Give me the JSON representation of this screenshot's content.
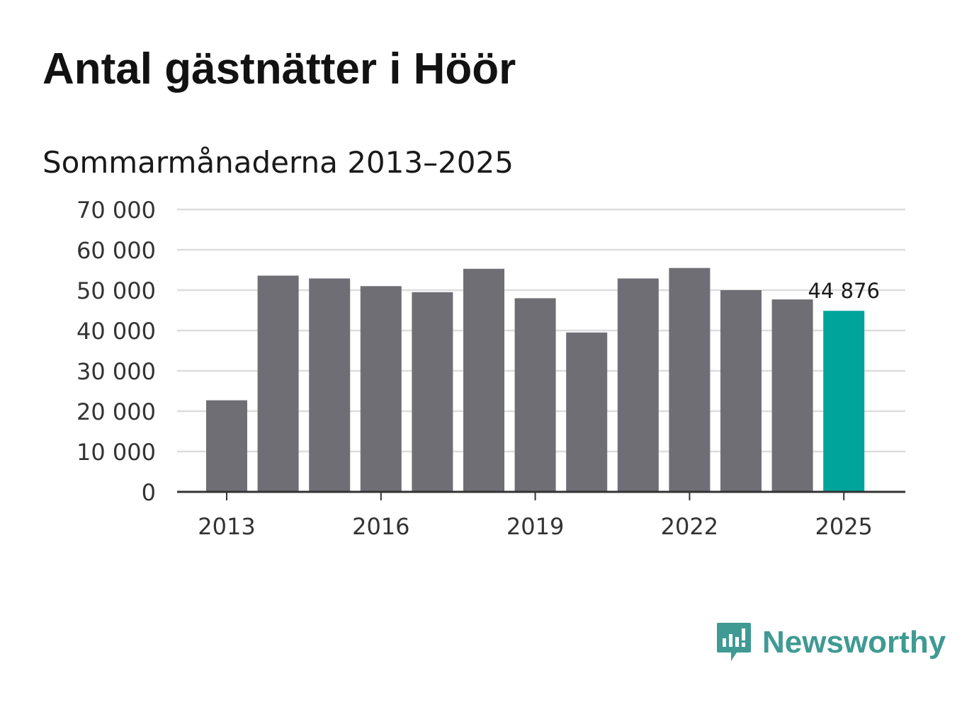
{
  "header": {
    "title": "Antal gästnätter i Höör",
    "subtitle": "Sommarmånaderna 2013–2025"
  },
  "brand": {
    "name": "Newsworthy",
    "icon": "newsworthy-logo-icon",
    "color": "#3f9a93"
  },
  "colors": {
    "bar": "#6f6e74",
    "highlight": "#00a49a",
    "grid": "#dddddd",
    "axis": "#333333"
  },
  "chart_data": {
    "type": "bar",
    "categories": [
      "2013",
      "2014",
      "2015",
      "2016",
      "2017",
      "2018",
      "2019",
      "2020",
      "2021",
      "2022",
      "2023",
      "2024",
      "2025"
    ],
    "values": [
      22700,
      53600,
      52900,
      51000,
      49500,
      55300,
      48000,
      39500,
      52900,
      55500,
      50000,
      47700,
      44876
    ],
    "highlight_index": 12,
    "data_labels": [
      {
        "index": 12,
        "text": "44 876"
      }
    ],
    "ylim": [
      0,
      70000
    ],
    "y_ticks": [
      0,
      10000,
      20000,
      30000,
      40000,
      50000,
      60000,
      70000
    ],
    "y_tick_labels": [
      "0",
      "10 000",
      "20 000",
      "30 000",
      "40 000",
      "50 000",
      "60 000",
      "70 000"
    ],
    "x_tick_labels": [
      "2013",
      "2016",
      "2019",
      "2022",
      "2025"
    ],
    "grid": true,
    "legend": "none"
  }
}
